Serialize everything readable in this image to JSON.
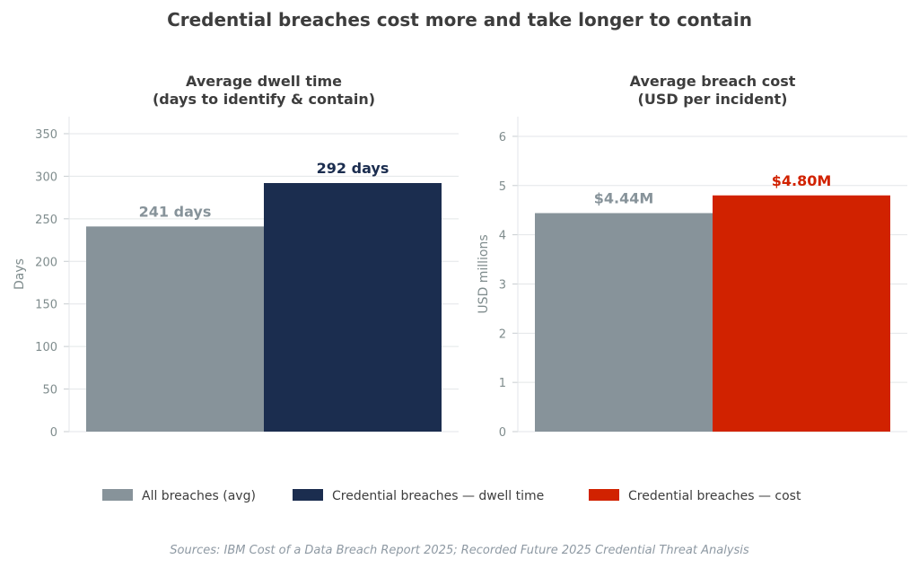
{
  "title": "Credential breaches cost more and take longer to contain",
  "source": "Sources: IBM Cost of a Data Breach Report 2025; Recorded Future 2025 Credential Threat Analysis",
  "legend": [
    {
      "label": "All breaches (avg)",
      "color": "#87939a"
    },
    {
      "label": "Credential breaches — dwell time",
      "color": "#1b2d4f"
    },
    {
      "label": "Credential breaches — cost",
      "color": "#d12200"
    }
  ],
  "chart_data": [
    {
      "type": "bar",
      "title_lines": [
        "Average dwell time",
        "(days to identify & contain)"
      ],
      "ylabel": "Days",
      "ylim": [
        0,
        370
      ],
      "yticks": [
        0,
        50,
        100,
        150,
        200,
        250,
        300,
        350
      ],
      "grid": true,
      "bars": [
        {
          "value": 241,
          "label": "241 days",
          "color": "#87939a"
        },
        {
          "value": 292,
          "label": "292 days",
          "color": "#1b2d4f"
        }
      ]
    },
    {
      "type": "bar",
      "title_lines": [
        "Average breach cost",
        "(USD per incident)"
      ],
      "ylabel": "USD millions",
      "ylim": [
        0,
        6.4
      ],
      "yticks": [
        0,
        1,
        2,
        3,
        4,
        5,
        6
      ],
      "grid": true,
      "bars": [
        {
          "value": 4.44,
          "label": "$4.44M",
          "color": "#87939a"
        },
        {
          "value": 4.8,
          "label": "$4.80M",
          "color": "#d12200"
        }
      ]
    }
  ]
}
